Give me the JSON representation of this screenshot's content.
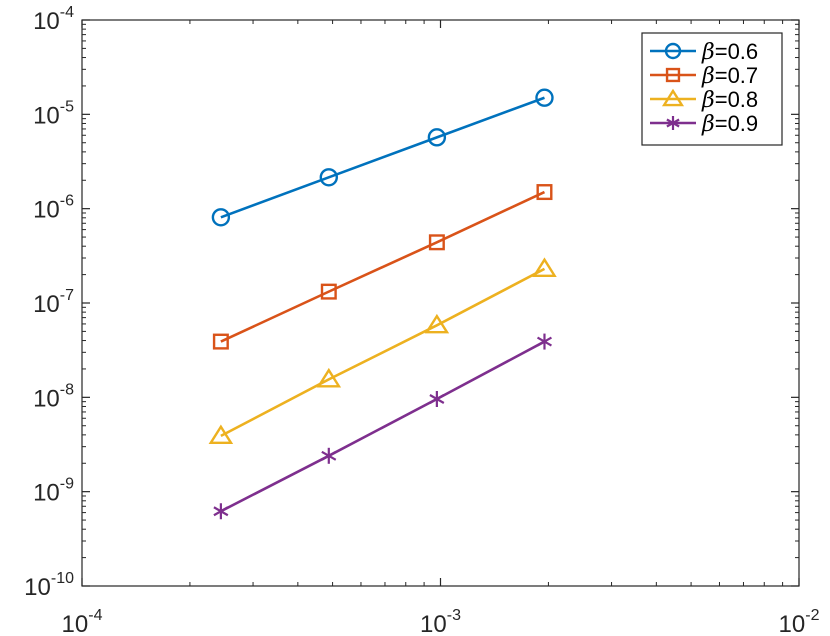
{
  "chart_data": {
    "type": "line",
    "title": "",
    "xlabel": "",
    "ylabel": "",
    "x_scale": "log",
    "y_scale": "log",
    "xlim": [
      0.0001,
      0.01
    ],
    "ylim": [
      1e-10,
      0.0001
    ],
    "grid": false,
    "legend_position": "top-right",
    "x_ticks": [
      {
        "value": 0.0001,
        "base": "10",
        "exp": "-4"
      },
      {
        "value": 0.001,
        "base": "10",
        "exp": "-3"
      },
      {
        "value": 0.01,
        "base": "10",
        "exp": "-2"
      }
    ],
    "y_ticks": [
      {
        "value": 0.0001,
        "base": "10",
        "exp": "-4"
      },
      {
        "value": 1e-05,
        "base": "10",
        "exp": "-5"
      },
      {
        "value": 1e-06,
        "base": "10",
        "exp": "-6"
      },
      {
        "value": 1e-07,
        "base": "10",
        "exp": "-7"
      },
      {
        "value": 1e-08,
        "base": "10",
        "exp": "-8"
      },
      {
        "value": 1e-09,
        "base": "10",
        "exp": "-9"
      },
      {
        "value": 1e-10,
        "base": "10",
        "exp": "-10"
      }
    ],
    "x": [
      0.000244,
      0.000488,
      0.000977,
      0.00195
    ],
    "series": [
      {
        "name": "β=0.6",
        "greek": "β",
        "suffix": "=0.6",
        "color": "#0072BD",
        "marker": "circle",
        "values": [
          8.1e-07,
          2.15e-06,
          5.7e-06,
          1.5e-05
        ]
      },
      {
        "name": "β=0.7",
        "greek": "β",
        "suffix": "=0.7",
        "color": "#D95319",
        "marker": "square",
        "values": [
          3.9e-08,
          1.32e-07,
          4.4e-07,
          1.5e-06
        ]
      },
      {
        "name": "β=0.8",
        "greek": "β",
        "suffix": "=0.8",
        "color": "#EDB120",
        "marker": "triangle",
        "values": [
          3.9e-09,
          1.55e-08,
          5.8e-08,
          2.3e-07
        ]
      },
      {
        "name": "β=0.9",
        "greek": "β",
        "suffix": "=0.9",
        "color": "#7E2F8E",
        "marker": "asterisk",
        "values": [
          6.2e-10,
          2.4e-09,
          9.6e-09,
          3.9e-08
        ]
      }
    ]
  }
}
